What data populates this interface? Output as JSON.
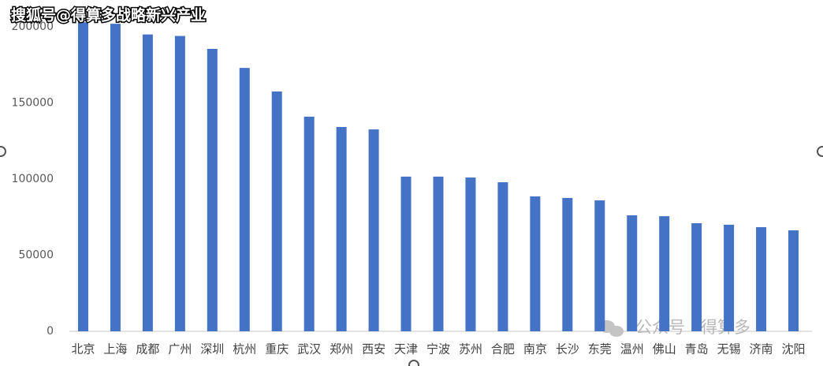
{
  "chart_data": {
    "type": "bar",
    "watermark": "搜狐号@得算多战略新兴产业",
    "watermark_2": "公众号 · 得算多",
    "categories": [
      "北京",
      "上海",
      "成都",
      "广州",
      "深圳",
      "杭州",
      "重庆",
      "武汉",
      "郑州",
      "西安",
      "天津",
      "宁波",
      "苏州",
      "合肥",
      "南京",
      "长沙",
      "东莞",
      "温州",
      "佛山",
      "青岛",
      "无锡",
      "济南",
      "沈阳"
    ],
    "values": [
      203000,
      202000,
      195000,
      194000,
      185500,
      173000,
      157500,
      141000,
      134200,
      132600,
      101600,
      101600,
      101000,
      97900,
      88600,
      87600,
      86000,
      76200,
      75600,
      71000,
      70000,
      68400,
      66300
    ],
    "color": "#4472c4",
    "ylim": [
      0,
      200000
    ],
    "yticks": [
      0,
      50000,
      100000,
      150000,
      200000
    ],
    "grid": false
  }
}
